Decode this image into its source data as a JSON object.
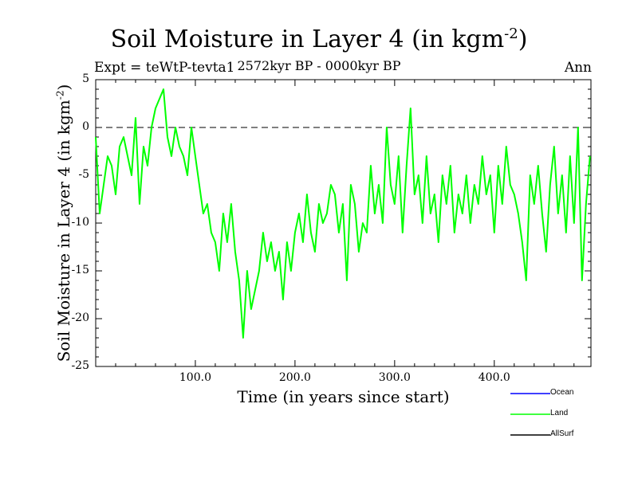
{
  "chart_data": {
    "type": "line",
    "title": "Soil Moisture in Layer 4 (in kgm",
    "title_sup": "-2",
    "title_end": ")",
    "subtitle": "2572kyr BP - 0000kyr BP",
    "experiment": "Expt = teWtP-tevta1",
    "period": "Ann",
    "xlabel": "Time (in years since start)",
    "ylabel": "Soil Moisture in Layer 4 (in kgm",
    "ylabel_sup": "-2",
    "ylabel_end": ")",
    "xlim": [
      0,
      497
    ],
    "ylim": [
      -25,
      5
    ],
    "xticks": [
      100,
      200,
      300,
      400
    ],
    "xtick_labels": [
      "100.0",
      "200.0",
      "300.0",
      "400.0"
    ],
    "yticks": [
      5,
      0,
      -5,
      -10,
      -15,
      -20,
      -25
    ],
    "ytick_labels": [
      "5",
      "0",
      "-5",
      "-10",
      "-15",
      "-20",
      "-25"
    ],
    "reference_line": 0,
    "colors": {
      "Ocean": "#0000ff",
      "Land": "#00ff00",
      "AllSurf": "#000000"
    },
    "legend": [
      "Ocean",
      "Land",
      "AllSurf"
    ],
    "series": [
      {
        "name": "Land",
        "color": "#00ff00",
        "x": [
          0,
          4,
          8,
          12,
          16,
          20,
          24,
          28,
          32,
          36,
          40,
          44,
          48,
          52,
          56,
          60,
          64,
          68,
          72,
          76,
          80,
          84,
          88,
          92,
          96,
          100,
          104,
          108,
          112,
          116,
          120,
          124,
          128,
          132,
          136,
          140,
          144,
          148,
          152,
          156,
          160,
          164,
          168,
          172,
          176,
          180,
          184,
          188,
          192,
          196,
          200,
          204,
          208,
          212,
          216,
          220,
          224,
          228,
          232,
          236,
          240,
          244,
          248,
          252,
          256,
          260,
          264,
          268,
          272,
          276,
          280,
          284,
          288,
          292,
          296,
          300,
          304,
          308,
          312,
          316,
          320,
          324,
          328,
          332,
          336,
          340,
          344,
          348,
          352,
          356,
          360,
          364,
          368,
          372,
          376,
          380,
          384,
          388,
          392,
          396,
          400,
          404,
          408,
          412,
          416,
          420,
          424,
          428,
          432,
          436,
          440,
          444,
          448,
          452,
          456,
          460,
          464,
          468,
          472,
          476,
          480,
          484,
          488,
          492,
          496
        ],
        "values": [
          -1,
          -9,
          -6,
          -3,
          -4,
          -7,
          -2,
          -1,
          -3,
          -5,
          1,
          -8,
          -2,
          -4,
          0,
          2,
          3,
          4,
          -1,
          -3,
          0,
          -2,
          -3,
          -5,
          0,
          -3,
          -6,
          -9,
          -8,
          -11,
          -12,
          -15,
          -9,
          -12,
          -8,
          -13,
          -16,
          -22,
          -15,
          -19,
          -17,
          -15,
          -11,
          -14,
          -12,
          -15,
          -13,
          -18,
          -12,
          -15,
          -11,
          -9,
          -12,
          -7,
          -11,
          -13,
          -8,
          -10,
          -9,
          -6,
          -7,
          -11,
          -8,
          -16,
          -6,
          -8,
          -13,
          -10,
          -11,
          -4,
          -9,
          -6,
          -10,
          0,
          -6,
          -8,
          -3,
          -11,
          -4,
          2,
          -7,
          -5,
          -10,
          -3,
          -9,
          -7,
          -12,
          -5,
          -8,
          -4,
          -11,
          -7,
          -9,
          -5,
          -10,
          -6,
          -8,
          -3,
          -7,
          -5,
          -11,
          -4,
          -8,
          -2,
          -6,
          -7,
          -9,
          -12,
          -16,
          -5,
          -8,
          -4,
          -9,
          -13,
          -6,
          -2,
          -9,
          -5,
          -11,
          -3,
          -10,
          0,
          -16,
          -8,
          -3
        ]
      },
      {
        "name": "Ocean",
        "color": "#0000ff",
        "x": [],
        "values": []
      },
      {
        "name": "AllSurf",
        "color": "#000000",
        "x": [],
        "values": []
      }
    ]
  }
}
